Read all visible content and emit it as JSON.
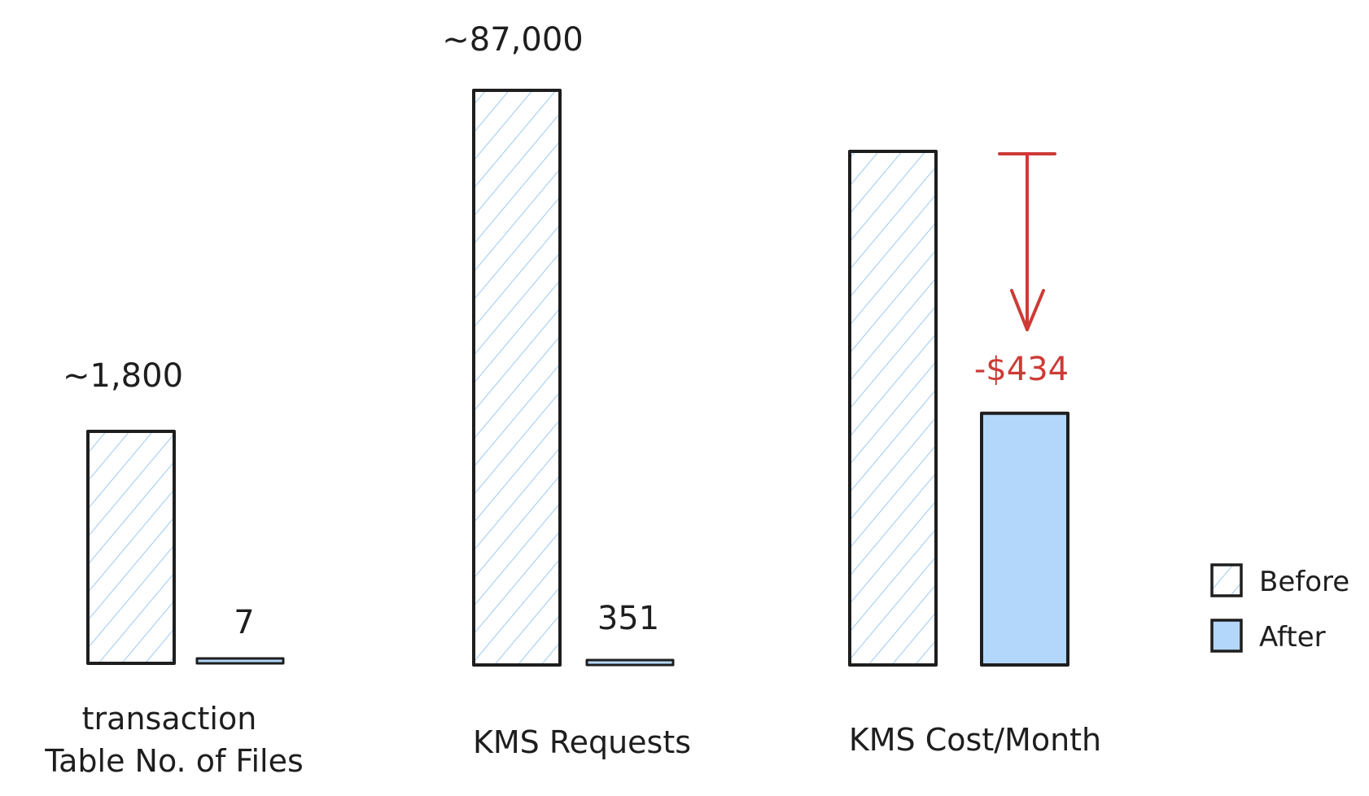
{
  "colors": {
    "before_hatch": "#a5cdf0",
    "after_fill": "#b3d7fb",
    "outline": "#1e1e1e",
    "annotation": "#cd3b36"
  },
  "legend": {
    "before": "Before",
    "after": "After",
    "placement": "bottom-right"
  },
  "chart_data": [
    {
      "type": "bar",
      "category_label_line1": "transaction",
      "category_label_line2": "Table No. of Files",
      "series": [
        {
          "name": "Before",
          "value": 1800,
          "label": "~1,800",
          "pattern": "hatched"
        },
        {
          "name": "After",
          "value": 7,
          "label": "7",
          "pattern": "solid-thin"
        }
      ]
    },
    {
      "type": "bar",
      "category_label_line1": "",
      "category_label_line2": "KMS Requests",
      "series": [
        {
          "name": "Before",
          "value": 87000,
          "label": "~87,000",
          "pattern": "hatched"
        },
        {
          "name": "After",
          "value": 351,
          "label": "351",
          "pattern": "solid-thin"
        }
      ]
    },
    {
      "type": "bar",
      "category_label_line1": "",
      "category_label_line2": "KMS Cost/Month",
      "series": [
        {
          "name": "Before",
          "value": 1.0,
          "label": "",
          "pattern": "hatched"
        },
        {
          "name": "After",
          "value": 0.49,
          "label": "",
          "pattern": "solid"
        }
      ],
      "annotation": {
        "text": "-$434",
        "kind": "decrease-arrow"
      }
    }
  ]
}
